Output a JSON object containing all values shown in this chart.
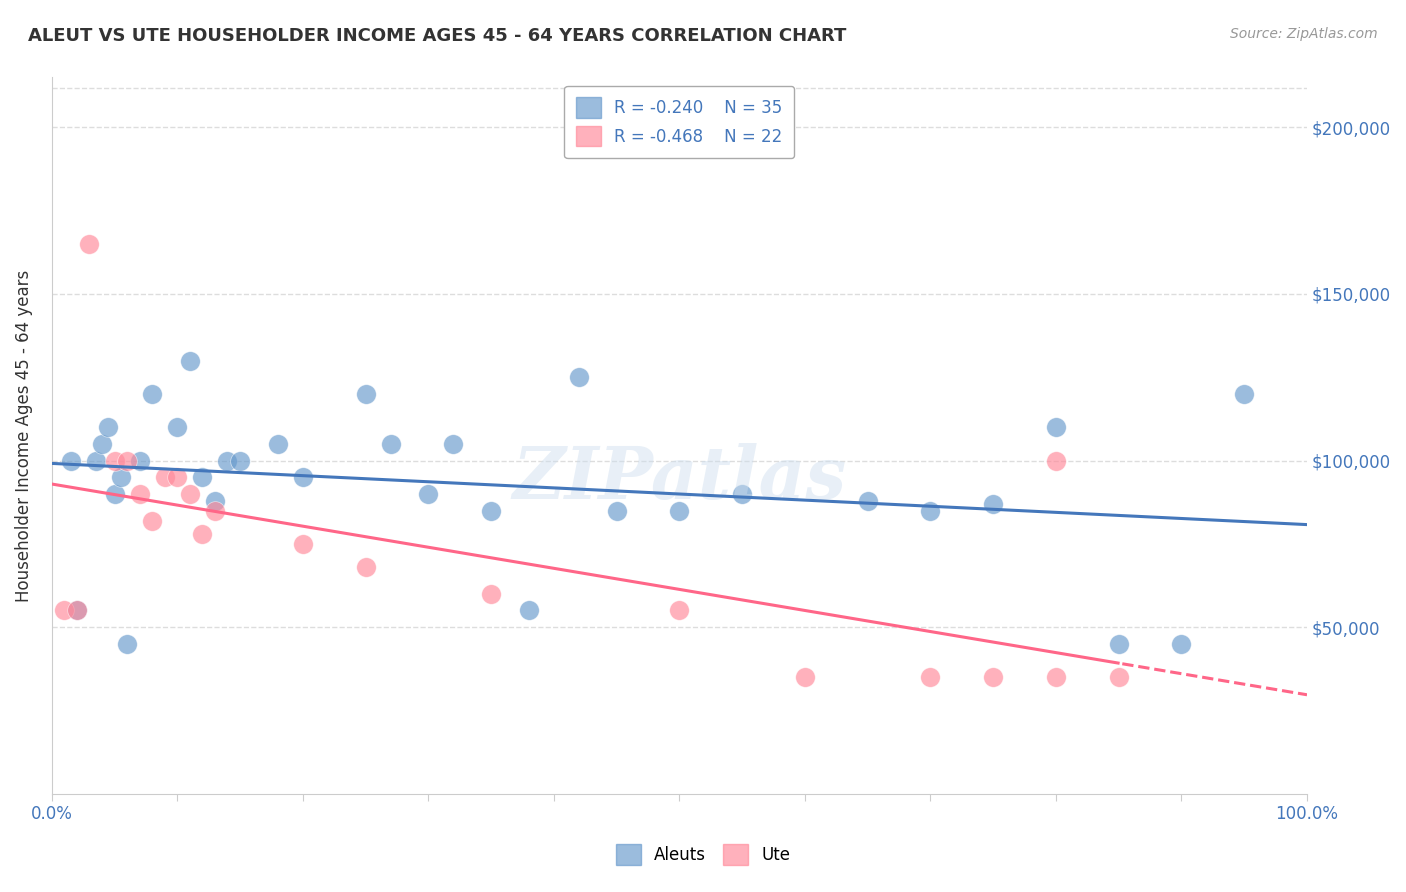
{
  "title": "ALEUT VS UTE HOUSEHOLDER INCOME AGES 45 - 64 YEARS CORRELATION CHART",
  "source": "Source: ZipAtlas.com",
  "ylabel": "Householder Income Ages 45 - 64 years",
  "legend_aleuts_r": "R = -0.240",
  "legend_aleuts_n": "N = 35",
  "legend_ute_r": "R = -0.468",
  "legend_ute_n": "N = 22",
  "aleuts_color": "#6699CC",
  "ute_color": "#FF8899",
  "regression_aleuts_color": "#4477BB",
  "regression_ute_color": "#FF6688",
  "ytick_labels": [
    "$50,000",
    "$100,000",
    "$150,000",
    "$200,000"
  ],
  "ytick_values": [
    50000,
    100000,
    150000,
    200000
  ],
  "xmin": 0.0,
  "xmax": 100.0,
  "ymin": 0,
  "ymax": 215000,
  "aleuts_x": [
    1.5,
    2.0,
    3.5,
    4.0,
    4.5,
    5.0,
    5.5,
    6.0,
    7.0,
    8.0,
    10.0,
    11.0,
    12.0,
    13.0,
    14.0,
    15.0,
    18.0,
    20.0,
    25.0,
    27.0,
    30.0,
    32.0,
    35.0,
    38.0,
    42.0,
    45.0,
    50.0,
    55.0,
    65.0,
    70.0,
    75.0,
    80.0,
    85.0,
    90.0,
    95.0
  ],
  "aleuts_y": [
    100000,
    55000,
    100000,
    105000,
    110000,
    90000,
    95000,
    45000,
    100000,
    120000,
    110000,
    130000,
    95000,
    88000,
    100000,
    100000,
    105000,
    95000,
    120000,
    105000,
    90000,
    105000,
    85000,
    55000,
    125000,
    85000,
    85000,
    90000,
    88000,
    85000,
    87000,
    110000,
    45000,
    45000,
    120000
  ],
  "ute_x": [
    1.0,
    2.0,
    3.0,
    5.0,
    6.0,
    7.0,
    8.0,
    9.0,
    10.0,
    11.0,
    12.0,
    13.0,
    20.0,
    25.0,
    35.0,
    50.0,
    60.0,
    70.0,
    75.0,
    80.0,
    80.0,
    85.0
  ],
  "ute_y": [
    55000,
    55000,
    165000,
    100000,
    100000,
    90000,
    82000,
    95000,
    95000,
    90000,
    78000,
    85000,
    75000,
    68000,
    60000,
    55000,
    35000,
    35000,
    35000,
    35000,
    100000,
    35000
  ],
  "grid_color": "#dddddd",
  "bg_color": "#ffffff",
  "title_color": "#333333",
  "tick_color": "#4477BB"
}
